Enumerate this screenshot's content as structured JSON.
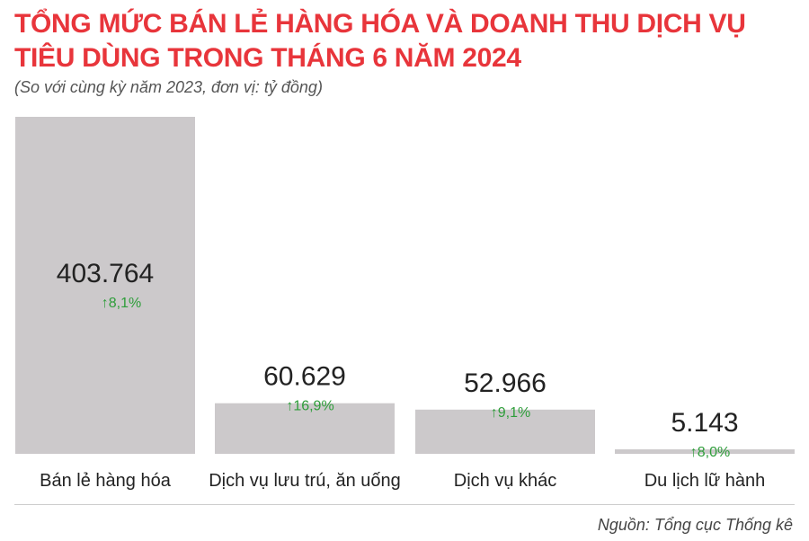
{
  "chart_data": {
    "type": "bar",
    "title": "TỔNG MỨC BÁN LẺ HÀNG HÓA VÀ DOANH THU DỊCH VỤ TIÊU DÙNG TRONG THÁNG 6 NĂM 2024",
    "subtitle": "(So với cùng kỳ năm 2023, đơn vị: tỷ đồng)",
    "categories": [
      "Bán lẻ hàng hóa",
      "Dịch vụ lưu trú, ăn uống",
      "Dịch vụ khác",
      "Du lịch lữ hành"
    ],
    "values": [
      403764,
      60629,
      52966,
      5143
    ],
    "value_labels": [
      "403.764",
      "60.629",
      "52.966",
      "5.143"
    ],
    "change_labels": [
      "8,1%",
      "16,9%",
      "9,1%",
      "8,0%"
    ],
    "ylim": [
      0,
      403764
    ],
    "grid": false,
    "legend": "none",
    "bar_color": "#ccc9cb",
    "change_color": "#2e9d3a",
    "title_color": "#e8353b"
  },
  "source": "Nguồn: Tổng cục Thống kê"
}
